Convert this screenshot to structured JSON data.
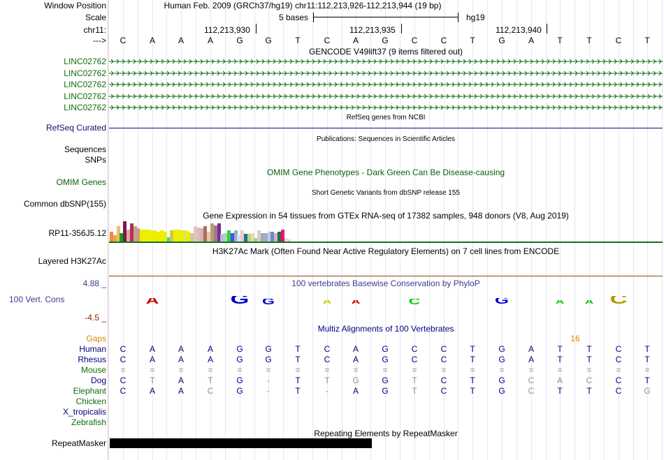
{
  "header": {
    "window_position_label": "Window Position",
    "scale_label": "Scale",
    "chrom_label": "chr11:",
    "strand_label": "--->",
    "assembly_text": "Human Feb. 2009 (GRCh37/hg19)   chr11:112,213,926-112,213,944 (19 bp)",
    "scale_text": "5 bases",
    "scale_db": "hg19",
    "ruler_ticks": [
      "112,213,930",
      "112,213,935",
      "112,213,940"
    ]
  },
  "sequence": [
    "C",
    "A",
    "A",
    "A",
    "G",
    "G",
    "T",
    "C",
    "A",
    "G",
    "C",
    "C",
    "T",
    "G",
    "A",
    "T",
    "T",
    "C",
    "T"
  ],
  "gencode": {
    "title": "GENCODE V49lift37 (9 items filtered out)",
    "items": [
      "LINC02762",
      "LINC02762",
      "LINC02762",
      "LINC02762",
      "LINC02762"
    ]
  },
  "refseq": {
    "title": "RefSeq genes from NCBI",
    "label": "RefSeq Curated"
  },
  "publications": {
    "title": "Publications: Sequences in Scientific Articles",
    "label": "Sequences",
    "color": "#000000"
  },
  "snps_label": "SNPs",
  "omim": {
    "title": "OMIM Gene Phenotypes - Dark Green Can Be Disease-causing",
    "label": "OMIM Genes",
    "color": "#0a5d0a"
  },
  "dbsnp": {
    "title": "Short Genetic Variants from dbSNP release 155",
    "label": "Common dbSNP(155)"
  },
  "gtex": {
    "title": "Gene Expression in 54 tissues from GTEx RNA-seq of 17382 samples, 948 donors (V8, Aug 2019)",
    "label": "RP11-356J5.12",
    "bars": [
      {
        "v": 0.45,
        "c": "#e88e3d"
      },
      {
        "v": 0.3,
        "c": "#f5a14b"
      },
      {
        "v": 0.7,
        "c": "#f7b774"
      },
      {
        "v": 0.4,
        "c": "#00aa00"
      },
      {
        "v": 0.95,
        "c": "#7a1a4b"
      },
      {
        "v": 0.55,
        "c": "#e8a0a0"
      },
      {
        "v": 0.85,
        "c": "#ad335e"
      },
      {
        "v": 0.7,
        "c": "#c2a58a"
      },
      {
        "v": 0.6,
        "c": "#c69c84"
      },
      {
        "v": 0.55,
        "c": "#eeee00"
      },
      {
        "v": 0.55,
        "c": "#eeee00"
      },
      {
        "v": 0.55,
        "c": "#eeee00"
      },
      {
        "v": 0.5,
        "c": "#eeee00"
      },
      {
        "v": 0.5,
        "c": "#eeee00"
      },
      {
        "v": 0.45,
        "c": "#eeee00"
      },
      {
        "v": 0.5,
        "c": "#eeee00"
      },
      {
        "v": 0.45,
        "c": "#eeee00"
      },
      {
        "v": 0.2,
        "c": "#33cccc"
      },
      {
        "v": 0.5,
        "c": "#cccc44"
      },
      {
        "v": 0.55,
        "c": "#eeee00"
      },
      {
        "v": 0.55,
        "c": "#eeee00"
      },
      {
        "v": 0.5,
        "c": "#eeee00"
      },
      {
        "v": 0.5,
        "c": "#e6e640"
      },
      {
        "v": 0.45,
        "c": "#eeee00"
      },
      {
        "v": 0.4,
        "c": "#c4d08a"
      },
      {
        "v": 0.7,
        "c": "#e8c3c3"
      },
      {
        "v": 0.65,
        "c": "#e0b9b9"
      },
      {
        "v": 0.6,
        "c": "#d6b0b0"
      },
      {
        "v": 0.7,
        "c": "#a8735d"
      },
      {
        "v": 0.45,
        "c": "#e8c8b0"
      },
      {
        "v": 0.85,
        "c": "#c39a6b"
      },
      {
        "v": 0.75,
        "c": "#997a9a"
      },
      {
        "v": 0.85,
        "c": "#7a2e8a"
      },
      {
        "v": 0.35,
        "c": "#bbb6f0"
      },
      {
        "v": 0.4,
        "c": "#a8d8a8"
      },
      {
        "v": 0.5,
        "c": "#33cc55"
      },
      {
        "v": 0.4,
        "c": "#4455dd"
      },
      {
        "v": 0.5,
        "c": "#9eaad0"
      },
      {
        "v": 0.3,
        "c": "#d8e0ff"
      },
      {
        "v": 0.5,
        "c": "#eecaca"
      },
      {
        "v": 0.35,
        "c": "#1e6e96"
      },
      {
        "v": 0.35,
        "c": "#bcd870"
      },
      {
        "v": 0.4,
        "c": "#ead8b8"
      },
      {
        "v": 0.15,
        "c": "#a0d0a0"
      },
      {
        "v": 0.5,
        "c": "#d0d0d0"
      },
      {
        "v": 0.4,
        "c": "#a8a8a8"
      },
      {
        "v": 0.4,
        "c": "#93b3c8"
      },
      {
        "v": 0.45,
        "c": "#d8c0e8"
      },
      {
        "v": 0.45,
        "c": "#6090c0"
      },
      {
        "v": 0.4,
        "c": "#e0a8c8"
      },
      {
        "v": 0.45,
        "c": "#117a3a"
      },
      {
        "v": 0.55,
        "c": "#ff0080"
      },
      {
        "v": 0.15,
        "c": "#cceecc"
      },
      {
        "v": 0.1,
        "c": "#ffcccc"
      }
    ]
  },
  "h3k27ac": {
    "title": "H3K27Ac Mark (Often Found Near Active Regulatory Elements) on 7 cell lines from ENCODE",
    "label": "Layered H3K27Ac",
    "line_color": "#8b4513"
  },
  "conservation": {
    "title": "100 vertebrates Basewise Conservation by PhyloP",
    "label": "100 Vert. Cons",
    "max_label": "4.88 _",
    "min_label": "-4.5 _",
    "color": "#3b3b8e",
    "logo": [
      {
        "i": 1,
        "base": "A",
        "s": 0.35,
        "color": "#cc0000"
      },
      {
        "i": 4,
        "base": "G",
        "s": 0.6,
        "color": "#0000cc"
      },
      {
        "i": 5,
        "base": "G",
        "s": 0.3,
        "color": "#0000cc"
      },
      {
        "i": 7,
        "base": "A",
        "s": 0.12,
        "color": "#cccc00"
      },
      {
        "i": 8,
        "base": "A",
        "s": 0.15,
        "color": "#cc0000"
      },
      {
        "i": 10,
        "base": "C",
        "s": 0.25,
        "color": "#00cc00"
      },
      {
        "i": 13,
        "base": "G",
        "s": 0.35,
        "color": "#0000cc"
      },
      {
        "i": 15,
        "base": "A",
        "s": 0.15,
        "color": "#00cc00"
      },
      {
        "i": 16,
        "base": "A",
        "s": 0.15,
        "color": "#00cc00"
      },
      {
        "i": 17,
        "base": "C",
        "s": 0.6,
        "color": "#aa9900"
      }
    ]
  },
  "multiz": {
    "title": "Multiz Alignments of 100 Vertebrates",
    "gaps_label": "Gaps",
    "gaps_value": "16",
    "gaps_color": "#dd8800",
    "species": [
      {
        "name": "Human",
        "color": "#00007f",
        "bases": [
          "C",
          "A",
          "A",
          "A",
          "G",
          "G",
          "T",
          "C",
          "A",
          "G",
          "C",
          "C",
          "T",
          "G",
          "A",
          "T",
          "T",
          "C",
          "T"
        ]
      },
      {
        "name": "Rhesus",
        "color": "#00007f",
        "bases": [
          "C",
          "A",
          "A",
          "A",
          "G",
          "G",
          "T",
          "C",
          "A",
          "G",
          "C",
          "C",
          "T",
          "G",
          "A",
          "T",
          "T",
          "C",
          "T"
        ]
      },
      {
        "name": "Mouse",
        "color": "#0a6e0a",
        "bases": [
          "=",
          "=",
          "=",
          "=",
          "=",
          "=",
          "=",
          "=",
          "=",
          "=",
          "=",
          "=",
          "=",
          "=",
          "=",
          "=",
          "=",
          "=",
          "="
        ]
      },
      {
        "name": "Dog",
        "color": "#00007f",
        "bases": [
          "C",
          "T",
          "A",
          "T",
          "G",
          "-",
          "T",
          "T",
          "G",
          "G",
          "T",
          "C",
          "T",
          "G",
          "C",
          "A",
          "C",
          "C",
          "T"
        ]
      },
      {
        "name": "Elephant",
        "color": "#0a6e0a",
        "bases": [
          "C",
          "A",
          "A",
          "C",
          "G",
          "-",
          "T",
          "-",
          "A",
          "G",
          "T",
          "C",
          "T",
          "G",
          "C",
          "T",
          "T",
          "C",
          "G"
        ]
      },
      {
        "name": "Chicken",
        "color": "#0a6e0a",
        "bases": []
      },
      {
        "name": "X_tropicalis",
        "color": "#00007f",
        "bases": []
      },
      {
        "name": "Zebrafish",
        "color": "#0a6e0a",
        "bases": []
      }
    ]
  },
  "repeatmasker": {
    "title": "Repeating Elements by RepeatMasker",
    "label": "RepeatMasker"
  },
  "colors": {
    "gene_green": "#0a6e0a",
    "refseq_navy": "#0c0c78",
    "grid": "#e6e6f6"
  }
}
